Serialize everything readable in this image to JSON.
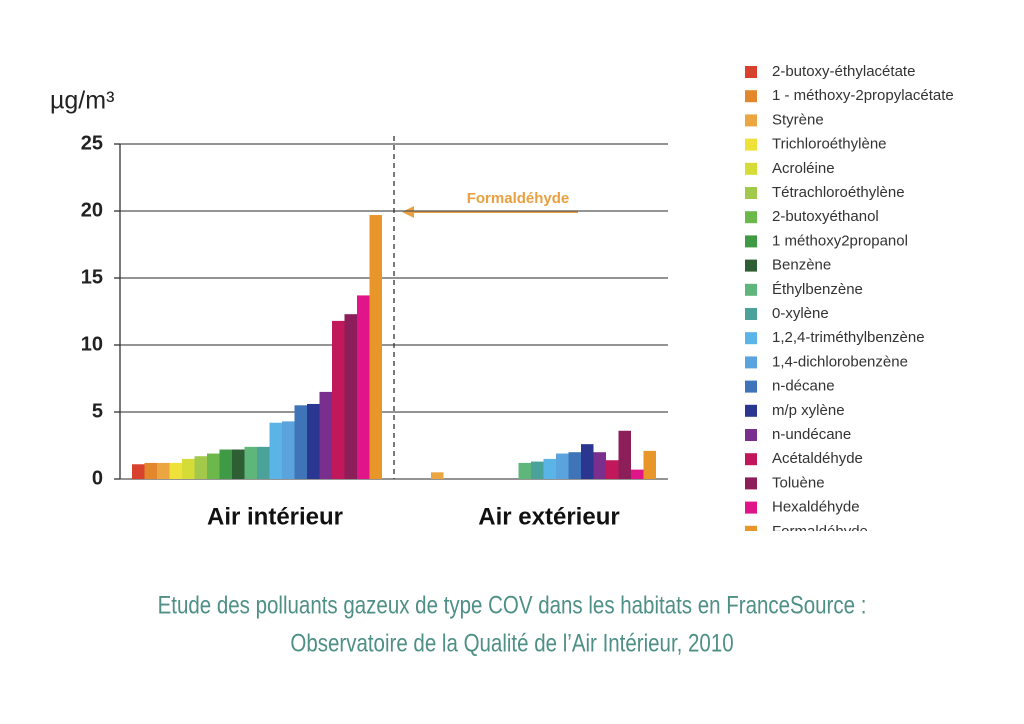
{
  "chart_data": {
    "type": "bar",
    "y_label": "µg/m³",
    "annotation": "Formaldéhyde",
    "categories": [
      "Air intérieur",
      "Air extérieur"
    ],
    "ylim": [
      0,
      25
    ],
    "yticks": [
      0,
      5,
      10,
      15,
      20,
      25
    ],
    "grid": true,
    "series": [
      {
        "name": "2-butoxy-éthylacétate",
        "color": "#d9412f",
        "values": [
          1.1,
          0
        ]
      },
      {
        "name": "1 - méthoxy-2propylacétate",
        "color": "#e2872c",
        "values": [
          1.2,
          0
        ]
      },
      {
        "name": "Styrène",
        "color": "#eba541",
        "values": [
          1.2,
          0.5
        ]
      },
      {
        "name": "Trichloroéthylène",
        "color": "#ede13a",
        "values": [
          1.2,
          0
        ]
      },
      {
        "name": "Acroléine",
        "color": "#d6dc37",
        "values": [
          1.5,
          0
        ]
      },
      {
        "name": "Tétrachloroéthylène",
        "color": "#a2c94b",
        "values": [
          1.7,
          0
        ]
      },
      {
        "name": "2-butoxyéthanol",
        "color": "#6db84b",
        "values": [
          1.9,
          0
        ]
      },
      {
        "name": "1 méthoxy2propanol",
        "color": "#3e9a45",
        "values": [
          2.2,
          0
        ]
      },
      {
        "name": "Benzène",
        "color": "#2e5e34",
        "values": [
          2.2,
          0
        ]
      },
      {
        "name": "Éthylbenzène",
        "color": "#5fb67a",
        "values": [
          2.4,
          1.2
        ]
      },
      {
        "name": "0-xylène",
        "color": "#4aa29a",
        "values": [
          2.4,
          1.3
        ]
      },
      {
        "name": "1,2,4-triméthylbenzène",
        "color": "#5ab4e6",
        "values": [
          4.2,
          1.5
        ]
      },
      {
        "name": "1,4-dichlorobenzène",
        "color": "#5aa3dc",
        "values": [
          4.3,
          1.9
        ]
      },
      {
        "name": "n-décane",
        "color": "#3f75b8",
        "values": [
          5.5,
          2.0
        ]
      },
      {
        "name": "m/p xylène",
        "color": "#2b3690",
        "values": [
          5.6,
          2.6
        ]
      },
      {
        "name": "n-undécane",
        "color": "#7a2e8e",
        "values": [
          6.5,
          2.0
        ]
      },
      {
        "name": "Acétaldéhyde",
        "color": "#c0185a",
        "values": [
          11.8,
          1.4
        ]
      },
      {
        "name": "Toluène",
        "color": "#8c1e5a",
        "values": [
          12.3,
          3.6
        ]
      },
      {
        "name": "Hexaldéhyde",
        "color": "#e0158a",
        "values": [
          13.7,
          0.7
        ]
      },
      {
        "name": "Formaldéhyde",
        "color": "#e8962a",
        "values": [
          19.7,
          2.1
        ]
      }
    ]
  },
  "caption": [
    "Etude des polluants gazeux de type COV dans les habitats en FranceSource :",
    "Observatoire de la Qualité de l’Air Intérieur, 2010"
  ]
}
